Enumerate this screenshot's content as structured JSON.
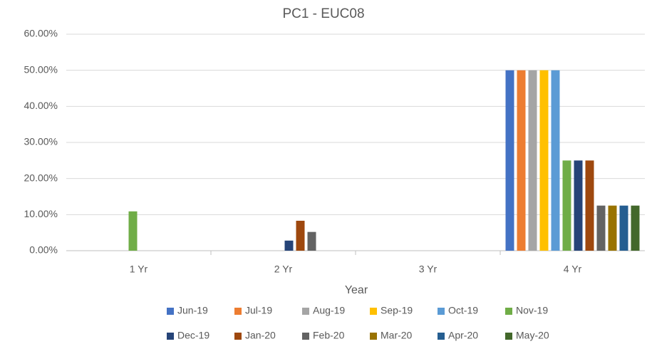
{
  "chart_data": {
    "type": "bar",
    "title": "PC1 - EUC08",
    "x_label": "Year",
    "categories": [
      "1 Yr",
      "2 Yr",
      "3 Yr",
      "4 Yr"
    ],
    "series": [
      {
        "name": "Jun-19",
        "color": "#4472c4",
        "values": [
          0,
          0,
          0,
          50
        ]
      },
      {
        "name": "Jul-19",
        "color": "#ed7d31",
        "values": [
          0,
          0,
          0,
          50
        ]
      },
      {
        "name": "Aug-19",
        "color": "#a5a5a5",
        "values": [
          0,
          0,
          0,
          50
        ]
      },
      {
        "name": "Sep-19",
        "color": "#ffc000",
        "values": [
          0,
          0,
          0,
          50
        ]
      },
      {
        "name": "Oct-19",
        "color": "#5b9bd5",
        "values": [
          0,
          0,
          0,
          50
        ]
      },
      {
        "name": "Nov-19",
        "color": "#70ad47",
        "values": [
          10.9,
          0,
          0,
          25
        ]
      },
      {
        "name": "Dec-19",
        "color": "#264478",
        "values": [
          0,
          2.8,
          0,
          25
        ]
      },
      {
        "name": "Jan-20",
        "color": "#9e480e",
        "values": [
          0,
          8.3,
          0,
          25
        ]
      },
      {
        "name": "Feb-20",
        "color": "#636363",
        "values": [
          0,
          5.2,
          0,
          12.5
        ]
      },
      {
        "name": "Mar-20",
        "color": "#997300",
        "values": [
          0,
          0,
          0,
          12.5
        ]
      },
      {
        "name": "Apr-20",
        "color": "#255e91",
        "values": [
          0,
          0,
          0,
          12.5
        ]
      },
      {
        "name": "May-20",
        "color": "#43682b",
        "values": [
          0,
          0,
          0,
          12.5
        ]
      }
    ],
    "ylim": [
      0,
      60
    ],
    "yticks": [
      {
        "value": 0,
        "label": "0.00%"
      },
      {
        "value": 10,
        "label": "10.00%"
      },
      {
        "value": 20,
        "label": "20.00%"
      },
      {
        "value": 30,
        "label": "30.00%"
      },
      {
        "value": 40,
        "label": "40.00%"
      },
      {
        "value": 50,
        "label": "50.00%"
      },
      {
        "value": 60,
        "label": "60.00%"
      }
    ],
    "grid": true,
    "legend": "bottom"
  }
}
